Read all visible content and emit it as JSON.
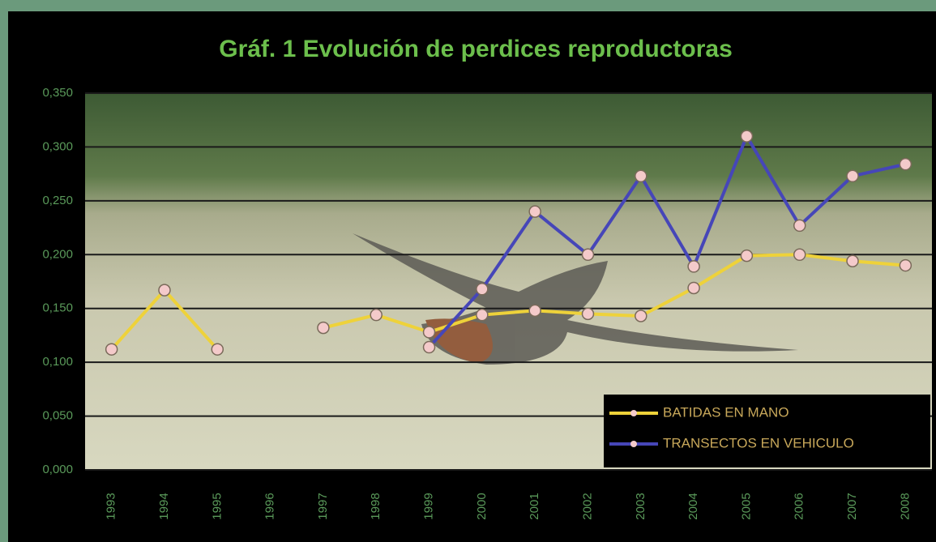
{
  "chart_data": {
    "type": "line",
    "title": "Gráf. 1   Evolución de perdices reproductoras",
    "categories": [
      "1993",
      "1994",
      "1995",
      "1996",
      "1997",
      "1998",
      "1999",
      "2000",
      "2001",
      "2002",
      "2003",
      "2004",
      "2005",
      "2006",
      "2007",
      "2008"
    ],
    "series": [
      {
        "name": "BATIDAS EN MANO",
        "color": "#eed23a",
        "values": [
          0.112,
          0.167,
          0.112,
          null,
          0.132,
          0.144,
          0.128,
          0.144,
          0.148,
          0.145,
          0.143,
          0.169,
          0.199,
          0.2,
          0.194,
          0.19
        ]
      },
      {
        "name": "TRANSECTOS EN VEHICULO",
        "color": "#4646b8",
        "values": [
          null,
          null,
          null,
          null,
          null,
          null,
          0.114,
          0.168,
          0.24,
          0.2,
          0.273,
          0.189,
          0.31,
          0.227,
          0.273,
          0.284
        ]
      }
    ],
    "marker_color": "#f4caca",
    "ylim": [
      0,
      0.35
    ],
    "yticks": [
      {
        "value": 0,
        "label": "0,000"
      },
      {
        "value": 0.05,
        "label": "0,050"
      },
      {
        "value": 0.1,
        "label": "0,100"
      },
      {
        "value": 0.15,
        "label": "0,150"
      },
      {
        "value": 0.2,
        "label": "0,200"
      },
      {
        "value": 0.25,
        "label": "0,250"
      },
      {
        "value": 0.3,
        "label": "0,300"
      },
      {
        "value": 0.35,
        "label": "0,350"
      }
    ],
    "grid": true,
    "legend": "bottom-right"
  }
}
